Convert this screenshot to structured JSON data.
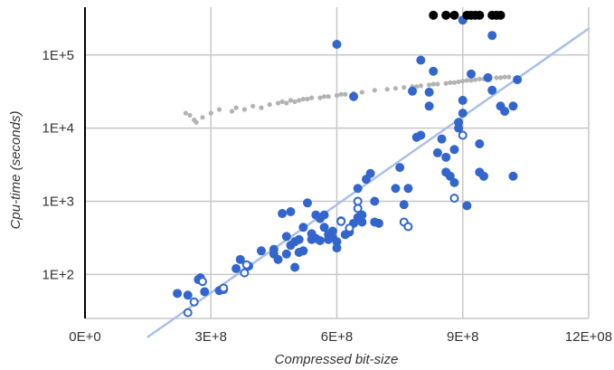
{
  "chart_data": {
    "type": "scatter",
    "title": "",
    "xlabel": "Compressed bit-size",
    "ylabel": "Cpu-time (seconds)",
    "x_scale": "linear",
    "y_scale": "log",
    "xlim": [
      0,
      1200000000
    ],
    "ylim": [
      25,
      450000
    ],
    "x_ticks": [
      {
        "value": 0,
        "label": "0E+0"
      },
      {
        "value": 300000000,
        "label": "3E+8"
      },
      {
        "value": 600000000,
        "label": "6E+8"
      },
      {
        "value": 900000000,
        "label": "9E+8"
      },
      {
        "value": 1200000000,
        "label": "12E+08"
      }
    ],
    "y_ticks": [
      {
        "value": 100,
        "label": "1E+2"
      },
      {
        "value": 1000,
        "label": "1E+3"
      },
      {
        "value": 10000,
        "label": "1E+4"
      },
      {
        "value": 100000,
        "label": "1E+5"
      }
    ],
    "grid": true,
    "legend": "none",
    "colors": {
      "solved": "#3366cc",
      "hollow": "#3366cc",
      "timeout": "#000000",
      "secondary": "#b3b3b3",
      "trend": "#a9c0ea",
      "grid": "#c8c8c8",
      "axis": "#000000"
    },
    "series": [
      {
        "style": "filled-blue",
        "points": [
          [
            220000000,
            55
          ],
          [
            245000000,
            52
          ],
          [
            275000000,
            90
          ],
          [
            270000000,
            85
          ],
          [
            285000000,
            58
          ],
          [
            320000000,
            60
          ],
          [
            330000000,
            62
          ],
          [
            360000000,
            120
          ],
          [
            370000000,
            160
          ],
          [
            390000000,
            130
          ],
          [
            420000000,
            210
          ],
          [
            450000000,
            190
          ],
          [
            450000000,
            220
          ],
          [
            460000000,
            160
          ],
          [
            470000000,
            680
          ],
          [
            480000000,
            330
          ],
          [
            490000000,
            720
          ],
          [
            480000000,
            190
          ],
          [
            490000000,
            250
          ],
          [
            500000000,
            280
          ],
          [
            500000000,
            125
          ],
          [
            510000000,
            300
          ],
          [
            510000000,
            200
          ],
          [
            520000000,
            210
          ],
          [
            520000000,
            440
          ],
          [
            530000000,
            950
          ],
          [
            540000000,
            300
          ],
          [
            540000000,
            360
          ],
          [
            550000000,
            310
          ],
          [
            550000000,
            650
          ],
          [
            560000000,
            290
          ],
          [
            560000000,
            580
          ],
          [
            570000000,
            650
          ],
          [
            570000000,
            440
          ],
          [
            580000000,
            300
          ],
          [
            580000000,
            350
          ],
          [
            590000000,
            320
          ],
          [
            590000000,
            390
          ],
          [
            600000000,
            230
          ],
          [
            600000000,
            280
          ],
          [
            610000000,
            540
          ],
          [
            620000000,
            350
          ],
          [
            630000000,
            380
          ],
          [
            640000000,
            500
          ],
          [
            650000000,
            600
          ],
          [
            650000000,
            1500
          ],
          [
            660000000,
            520
          ],
          [
            660000000,
            650
          ],
          [
            670000000,
            2000
          ],
          [
            680000000,
            2400
          ],
          [
            690000000,
            1000
          ],
          [
            690000000,
            520
          ],
          [
            700000000,
            500
          ],
          [
            740000000,
            1500
          ],
          [
            750000000,
            2900
          ],
          [
            760000000,
            900
          ],
          [
            770000000,
            1500
          ],
          [
            780000000,
            32000
          ],
          [
            790000000,
            7500
          ],
          [
            800000000,
            8000
          ],
          [
            820000000,
            20000
          ],
          [
            820000000,
            31000
          ],
          [
            830000000,
            60000
          ],
          [
            840000000,
            4600
          ],
          [
            850000000,
            7100
          ],
          [
            860000000,
            2500
          ],
          [
            860000000,
            4000
          ],
          [
            870000000,
            2200
          ],
          [
            880000000,
            1800
          ],
          [
            880000000,
            5100
          ],
          [
            890000000,
            10000
          ],
          [
            890000000,
            12000
          ],
          [
            900000000,
            16000
          ],
          [
            900000000,
            24000
          ],
          [
            910000000,
            870
          ],
          [
            920000000,
            55000
          ],
          [
            940000000,
            2500
          ],
          [
            940000000,
            6100
          ],
          [
            950000000,
            2200
          ],
          [
            960000000,
            49000
          ],
          [
            970000000,
            33000
          ],
          [
            970000000,
            185000
          ],
          [
            990000000,
            20000
          ],
          [
            1000000000,
            17000
          ],
          [
            1020000000,
            20000
          ],
          [
            1020000000,
            2200
          ],
          [
            1030000000,
            46000
          ],
          [
            800000000,
            85000
          ],
          [
            600000000,
            140000
          ],
          [
            900000000,
            300000
          ],
          [
            640000000,
            27000
          ]
        ]
      },
      {
        "style": "hollow-blue",
        "points": [
          [
            245000000,
            30
          ],
          [
            260000000,
            42
          ],
          [
            280000000,
            80
          ],
          [
            330000000,
            65
          ],
          [
            380000000,
            105
          ],
          [
            385000000,
            135
          ],
          [
            610000000,
            530
          ],
          [
            630000000,
            430
          ],
          [
            650000000,
            800
          ],
          [
            650000000,
            1000
          ],
          [
            760000000,
            520
          ],
          [
            770000000,
            450
          ],
          [
            880000000,
            1100
          ],
          [
            900000000,
            8000
          ]
        ]
      },
      {
        "style": "black-timeout",
        "points": [
          [
            830000000,
            350000
          ],
          [
            860000000,
            350000
          ],
          [
            880000000,
            350000
          ],
          [
            910000000,
            350000
          ],
          [
            920000000,
            350000
          ],
          [
            930000000,
            350000
          ],
          [
            940000000,
            350000
          ],
          [
            970000000,
            350000
          ],
          [
            980000000,
            350000
          ],
          [
            990000000,
            350000
          ]
        ]
      },
      {
        "style": "gray-small",
        "points": [
          [
            240000000,
            16000
          ],
          [
            250000000,
            15000
          ],
          [
            260000000,
            13000
          ],
          [
            265000000,
            12000
          ],
          [
            280000000,
            14000
          ],
          [
            300000000,
            16000
          ],
          [
            320000000,
            18000
          ],
          [
            350000000,
            17000
          ],
          [
            360000000,
            19000
          ],
          [
            380000000,
            18000
          ],
          [
            400000000,
            20000
          ],
          [
            420000000,
            19000
          ],
          [
            440000000,
            21000
          ],
          [
            460000000,
            22000
          ],
          [
            470000000,
            23000
          ],
          [
            480000000,
            22000
          ],
          [
            490000000,
            24000
          ],
          [
            500000000,
            23000
          ],
          [
            510000000,
            24000
          ],
          [
            520000000,
            25000
          ],
          [
            530000000,
            25000
          ],
          [
            540000000,
            26000
          ],
          [
            560000000,
            26000
          ],
          [
            570000000,
            27000
          ],
          [
            580000000,
            27000
          ],
          [
            600000000,
            28000
          ],
          [
            610000000,
            29000
          ],
          [
            620000000,
            29000
          ],
          [
            640000000,
            30000
          ],
          [
            660000000,
            31000
          ],
          [
            690000000,
            33000
          ],
          [
            720000000,
            34000
          ],
          [
            740000000,
            35000
          ],
          [
            760000000,
            36000
          ],
          [
            780000000,
            37000
          ],
          [
            790000000,
            37000
          ],
          [
            800000000,
            38000
          ],
          [
            820000000,
            39000
          ],
          [
            830000000,
            40000
          ],
          [
            840000000,
            40000
          ],
          [
            860000000,
            41000
          ],
          [
            870000000,
            42000
          ],
          [
            880000000,
            42000
          ],
          [
            890000000,
            43000
          ],
          [
            900000000,
            44000
          ],
          [
            910000000,
            45000
          ],
          [
            920000000,
            45000
          ],
          [
            930000000,
            46000
          ],
          [
            940000000,
            47000
          ],
          [
            950000000,
            47000
          ],
          [
            960000000,
            48000
          ],
          [
            980000000,
            49000
          ],
          [
            990000000,
            49000
          ],
          [
            1000000000,
            50000
          ],
          [
            1010000000,
            50000
          ]
        ]
      }
    ],
    "trendline": {
      "from": [
        150000000,
        14
      ],
      "to": [
        1200000000,
        230000
      ]
    }
  }
}
